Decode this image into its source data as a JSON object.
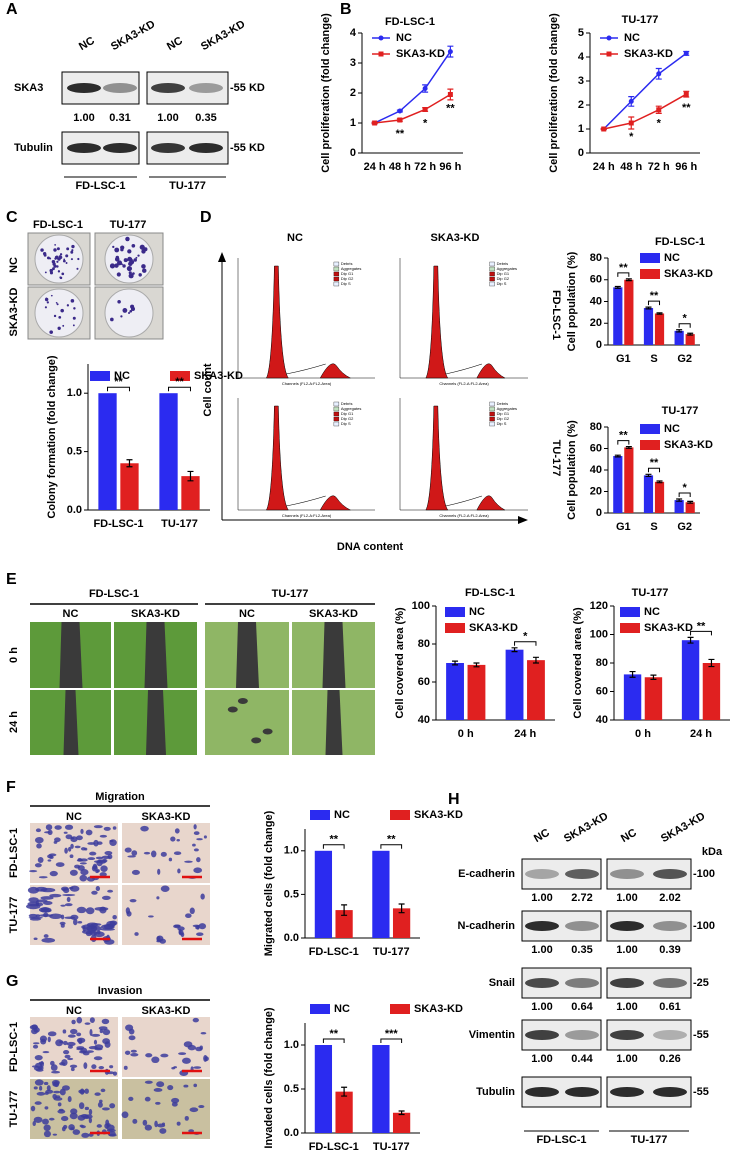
{
  "panel_labels": [
    "A",
    "B",
    "C",
    "D",
    "E",
    "F",
    "G",
    "H"
  ],
  "chart_data": [
    {
      "type": "line",
      "title": "FD-LSC-1",
      "ylabel": "Cell proliferation (fold change)",
      "categories": [
        "24 h",
        "48 h",
        "72 h",
        "96 h"
      ],
      "series": [
        {
          "name": "NC",
          "color": "#2b2bf0",
          "values": [
            1,
            1.4,
            2.15,
            3.38
          ],
          "errors": [
            0.02,
            0.03,
            0.12,
            0.18
          ]
        },
        {
          "name": "SKA3-KD",
          "color": "#e02020",
          "values": [
            1,
            1.1,
            1.45,
            1.95
          ],
          "errors": [
            0.02,
            0.04,
            0.06,
            0.18
          ]
        }
      ],
      "annotations": [
        null,
        "**",
        "*",
        "**"
      ],
      "ylim": [
        0,
        4
      ],
      "yticks": [
        0,
        1,
        2,
        3,
        4
      ]
    },
    {
      "type": "line",
      "title": "TU-177",
      "ylabel": "Cell proliferation (fold change)",
      "categories": [
        "24 h",
        "48 h",
        "72 h",
        "96 h"
      ],
      "series": [
        {
          "name": "NC",
          "color": "#2b2bf0",
          "values": [
            1,
            2.15,
            3.3,
            4.15
          ],
          "errors": [
            0.02,
            0.2,
            0.22,
            0.08
          ]
        },
        {
          "name": "SKA3-KD",
          "color": "#e02020",
          "values": [
            1,
            1.25,
            1.8,
            2.45
          ],
          "errors": [
            0.02,
            0.25,
            0.15,
            0.12
          ]
        }
      ],
      "annotations": [
        null,
        "*",
        "*",
        "**"
      ],
      "ylim": [
        0,
        5
      ],
      "yticks": [
        0,
        1,
        2,
        3,
        4,
        5
      ]
    },
    {
      "type": "bar",
      "ylabel": "Colony formation (fold change)",
      "categories": [
        "FD-LSC-1",
        "TU-177"
      ],
      "series": [
        {
          "name": "NC",
          "color": "#2b2bf0",
          "values": [
            1,
            1
          ]
        },
        {
          "name": "SKA3-KD",
          "color": "#e02020",
          "values": [
            0.4,
            0.29
          ],
          "errors": [
            0.03,
            0.04
          ]
        }
      ],
      "annotations": [
        "**",
        "**"
      ],
      "ylim": [
        0,
        1.25
      ],
      "yticks": [
        {
          "value": 0,
          "label": "0.0"
        },
        {
          "value": 0.5,
          "label": "0.5"
        },
        {
          "value": 1,
          "label": "1.0"
        }
      ]
    },
    {
      "type": "bar",
      "title": "FD-LSC-1",
      "ylabel": "Cell population (%)",
      "categories": [
        "G1",
        "S",
        "G2"
      ],
      "series": [
        {
          "name": "NC",
          "color": "#2b2bf0",
          "values": [
            53,
            34,
            13
          ],
          "errors": [
            0.8,
            0.8,
            1
          ]
        },
        {
          "name": "SKA3-KD",
          "color": "#e02020",
          "values": [
            60,
            29,
            10
          ],
          "errors": [
            0.8,
            0.6,
            0.8
          ]
        }
      ],
      "annotations": [
        "**",
        "**",
        "*"
      ],
      "ylim": [
        0,
        80
      ],
      "yticks": [
        0,
        20,
        40,
        60,
        80
      ]
    },
    {
      "type": "bar",
      "title": "TU-177",
      "ylabel": "Cell population (%)",
      "categories": [
        "G1",
        "S",
        "G2"
      ],
      "series": [
        {
          "name": "NC",
          "color": "#2b2bf0",
          "values": [
            53,
            35,
            12
          ],
          "errors": [
            0.8,
            1,
            1
          ]
        },
        {
          "name": "SKA3-KD",
          "color": "#e02020",
          "values": [
            61,
            29,
            10
          ],
          "errors": [
            0.8,
            0.8,
            0.8
          ]
        }
      ],
      "annotations": [
        "**",
        "**",
        "*"
      ],
      "ylim": [
        0,
        80
      ],
      "yticks": [
        0,
        20,
        40,
        60,
        80
      ]
    },
    {
      "type": "bar",
      "title": "FD-LSC-1",
      "ylabel": "Cell covered area (%)",
      "categories": [
        "0 h",
        "24 h"
      ],
      "series": [
        {
          "name": "NC",
          "color": "#2b2bf0",
          "values": [
            70,
            77
          ],
          "errors": [
            1,
            1
          ]
        },
        {
          "name": "SKA3-KD",
          "color": "#e02020",
          "values": [
            69,
            71.5
          ],
          "errors": [
            1,
            1.5
          ]
        }
      ],
      "annotations": [
        null,
        "*"
      ],
      "ylim": [
        40,
        100
      ],
      "yticks": [
        40,
        60,
        80,
        100
      ]
    },
    {
      "type": "bar",
      "title": "TU-177",
      "ylabel": "Cell covered area (%)",
      "categories": [
        "0 h",
        "24 h"
      ],
      "series": [
        {
          "name": "NC",
          "color": "#2b2bf0",
          "values": [
            72,
            96
          ],
          "errors": [
            2,
            2
          ]
        },
        {
          "name": "SKA3-KD",
          "color": "#e02020",
          "values": [
            70,
            80
          ],
          "errors": [
            1.5,
            2.5
          ]
        }
      ],
      "annotations": [
        null,
        "**"
      ],
      "ylim": [
        40,
        120
      ],
      "yticks": [
        40,
        60,
        80,
        100,
        120
      ]
    },
    {
      "type": "bar",
      "ylabel": "Migrated cells (fold change)",
      "categories": [
        "FD-LSC-1",
        "TU-177"
      ],
      "series": [
        {
          "name": "NC",
          "color": "#2b2bf0",
          "values": [
            1,
            1
          ]
        },
        {
          "name": "SKA3-KD",
          "color": "#e02020",
          "values": [
            0.32,
            0.34
          ],
          "errors": [
            0.06,
            0.05
          ]
        }
      ],
      "annotations": [
        "**",
        "**"
      ],
      "ylim": [
        0,
        1.25
      ],
      "yticks": [
        {
          "value": 0,
          "label": "0.0"
        },
        {
          "value": 0.5,
          "label": "0.5"
        },
        {
          "value": 1,
          "label": "1.0"
        }
      ]
    },
    {
      "type": "bar",
      "ylabel": "Invaded cells (fold change)",
      "categories": [
        "FD-LSC-1",
        "TU-177"
      ],
      "series": [
        {
          "name": "NC",
          "color": "#2b2bf0",
          "values": [
            1,
            1
          ]
        },
        {
          "name": "SKA3-KD",
          "color": "#e02020",
          "values": [
            0.47,
            0.23
          ],
          "errors": [
            0.05,
            0.02
          ]
        }
      ],
      "annotations": [
        "**",
        "***"
      ],
      "ylim": [
        0,
        1.25
      ],
      "yticks": [
        {
          "value": 0,
          "label": "0.0"
        },
        {
          "value": 0.5,
          "label": "0.5"
        },
        {
          "value": 1,
          "label": "1.0"
        }
      ]
    }
  ],
  "blot_a": {
    "lanes": [
      "NC",
      "SKA3-KD",
      "NC",
      "SKA3-KD"
    ],
    "rows": [
      {
        "name": "SKA3",
        "values": [
          "1.00",
          "0.31",
          "1.00",
          "0.35"
        ],
        "marker": "-55 KD"
      },
      {
        "name": "Tubulin",
        "marker": "-55 KD"
      }
    ],
    "groups": [
      "FD-LSC-1",
      "TU-177"
    ]
  },
  "colony": {
    "columns": [
      "FD-LSC-1",
      "TU-177"
    ],
    "rows": [
      "NC",
      "SKA3-KD"
    ]
  },
  "flow": {
    "columns": [
      "NC",
      "SKA3-KD"
    ],
    "rows": [
      "FD-LSC-1",
      "TU-177"
    ],
    "ylabel": "Cell count",
    "xlabel": "DNA content",
    "legend": [
      "Debris",
      "Aggregates",
      "Dip G1",
      "Dip G2",
      "Dip S"
    ],
    "channel_label": "Channels (FL2-A:FL2-Area)"
  },
  "wound": {
    "groups": [
      "FD-LSC-1",
      "TU-177"
    ],
    "lanes": [
      "NC",
      "SKA3-KD",
      "NC",
      "SKA3-KD"
    ],
    "rows": [
      "0 h",
      "24 h"
    ]
  },
  "migration": {
    "title": "Migration",
    "columns": [
      "NC",
      "SKA3-KD"
    ],
    "rows": [
      "FD-LSC-1",
      "TU-177"
    ]
  },
  "invasion": {
    "title": "Invasion",
    "columns": [
      "NC",
      "SKA3-KD"
    ],
    "rows": [
      "FD-LSC-1",
      "TU-177"
    ]
  },
  "blot_h": {
    "unit": "kDa",
    "lanes": [
      "NC",
      "SKA3-KD",
      "NC",
      "SKA3-KD"
    ],
    "rows": [
      {
        "name": "E-cadherin",
        "values": [
          "1.00",
          "2.72",
          "1.00",
          "2.02"
        ],
        "marker": "-100"
      },
      {
        "name": "N-cadherin",
        "values": [
          "1.00",
          "0.35",
          "1.00",
          "0.39"
        ],
        "marker": "-100"
      },
      {
        "name": "Snail",
        "values": [
          "1.00",
          "0.64",
          "1.00",
          "0.61"
        ],
        "marker": "-25"
      },
      {
        "name": "Vimentin",
        "values": [
          "1.00",
          "0.44",
          "1.00",
          "0.26"
        ],
        "marker": "-55"
      },
      {
        "name": "Tubulin",
        "marker": "-55"
      }
    ],
    "groups": [
      "FD-LSC-1",
      "TU-177"
    ]
  }
}
